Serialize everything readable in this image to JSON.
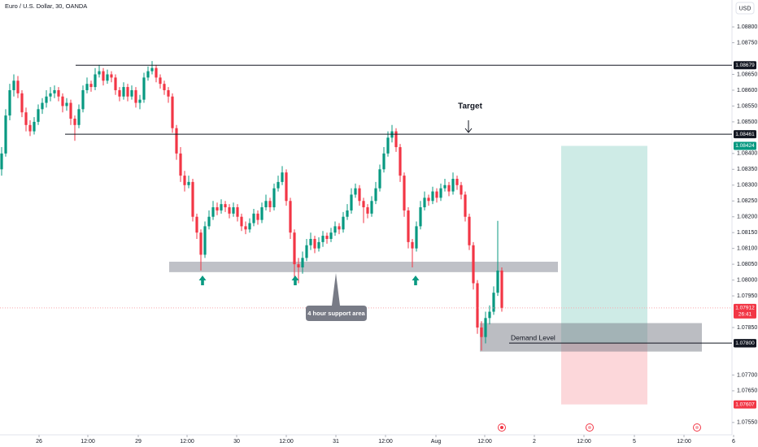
{
  "chart_data": {
    "type": "candlestick",
    "title": "Euro / U.S. Dollar, 30, OANDA",
    "currency": "USD",
    "up_color": "#089981",
    "down_color": "#f23645",
    "xlim": [
      -0.4,
      179.2
    ],
    "ylim": [
      1.07511,
      1.08885
    ],
    "yticks": [
      {
        "value": 1.088,
        "label": "1.08800"
      },
      {
        "value": 1.0875,
        "label": "1.08750"
      },
      {
        "value": 1.0865,
        "label": "1.08650"
      },
      {
        "value": 1.086,
        "label": "1.08600"
      },
      {
        "value": 1.0855,
        "label": "1.08550"
      },
      {
        "value": 1.085,
        "label": "1.08500"
      },
      {
        "value": 1.084,
        "label": "1.08400"
      },
      {
        "value": 1.0835,
        "label": "1.08350"
      },
      {
        "value": 1.083,
        "label": "1.08300"
      },
      {
        "value": 1.0825,
        "label": "1.08250"
      },
      {
        "value": 1.082,
        "label": "1.08200"
      },
      {
        "value": 1.0815,
        "label": "1.08150"
      },
      {
        "value": 1.081,
        "label": "1.08100"
      },
      {
        "value": 1.0805,
        "label": "1.08050"
      },
      {
        "value": 1.08,
        "label": "1.08000"
      },
      {
        "value": 1.0795,
        "label": "1.07950"
      },
      {
        "value": 1.0785,
        "label": "1.07850"
      },
      {
        "value": 1.077,
        "label": "1.07700"
      },
      {
        "value": 1.0765,
        "label": "1.07650"
      },
      {
        "value": 1.0755,
        "label": "1.07550"
      }
    ],
    "xticks": [
      {
        "value": 9.2,
        "label": "26"
      },
      {
        "value": 21.2,
        "label": "12:00"
      },
      {
        "value": 33.6,
        "label": "29"
      },
      {
        "value": 45.6,
        "label": "12:00"
      },
      {
        "value": 57.8,
        "label": "30"
      },
      {
        "value": 70,
        "label": "12:00"
      },
      {
        "value": 82.2,
        "label": "31"
      },
      {
        "value": 94.4,
        "label": "12:00"
      },
      {
        "value": 106.8,
        "label": "Aug"
      },
      {
        "value": 118.8,
        "label": "12:00"
      },
      {
        "value": 131,
        "label": "2"
      },
      {
        "value": 143.2,
        "label": "12:00"
      },
      {
        "value": 155.6,
        "label": "5"
      },
      {
        "value": 167.8,
        "label": "12:00"
      },
      {
        "value": 180,
        "label": "6"
      }
    ],
    "resistance": 1.08679,
    "target_level": 1.08461,
    "take_profit": 1.08424,
    "last_price": 1.07912,
    "countdown": "26:41",
    "demand_line": 1.07801,
    "entry": {
      "value": 1.078,
      "label": "1.07800"
    },
    "stop_loss": 1.07607,
    "support_zone": [
      1.08025,
      1.08058
    ],
    "demand_zone": [
      1.07774,
      1.07864
    ],
    "annotations": {
      "target": "Target",
      "support": "4 hour support area",
      "demand": "Demand Level"
    },
    "candles": [
      [
        1.0835,
        1.0842,
        1.0833,
        1.084
      ],
      [
        1.084,
        1.0854,
        1.0839,
        1.0852
      ],
      [
        1.0852,
        1.0862,
        1.08505,
        1.086
      ],
      [
        1.086,
        1.0865,
        1.0858,
        1.0863
      ],
      [
        1.0863,
        1.08645,
        1.08575,
        1.0859
      ],
      [
        1.0859,
        1.086,
        1.08515,
        1.0853
      ],
      [
        1.0853,
        1.08545,
        1.0847,
        1.0849
      ],
      [
        1.0849,
        1.08505,
        1.08455,
        1.0847
      ],
      [
        1.0847,
        1.08515,
        1.0846,
        1.085
      ],
      [
        1.085,
        1.08555,
        1.0849,
        1.0854
      ],
      [
        1.0854,
        1.08575,
        1.08525,
        1.0856
      ],
      [
        1.0856,
        1.086,
        1.08545,
        1.0858
      ],
      [
        1.0858,
        1.0861,
        1.08565,
        1.0859
      ],
      [
        1.0859,
        1.08615,
        1.08575,
        1.086
      ],
      [
        1.086,
        1.0861,
        1.08565,
        1.0858
      ],
      [
        1.0858,
        1.0859,
        1.0853,
        1.0855
      ],
      [
        1.0855,
        1.08575,
        1.08535,
        1.0856
      ],
      [
        1.0856,
        1.0857,
        1.0849,
        1.0851
      ],
      [
        1.0851,
        1.0852,
        1.0844,
        1.0849
      ],
      [
        1.0849,
        1.08555,
        1.0848,
        1.0854
      ],
      [
        1.0854,
        1.08615,
        1.0853,
        1.086
      ],
      [
        1.086,
        1.0864,
        1.0859,
        1.0862
      ],
      [
        1.0862,
        1.0863,
        1.08595,
        1.0861
      ],
      [
        1.0861,
        1.0867,
        1.086,
        1.0865
      ],
      [
        1.0865,
        1.0868,
        1.0864,
        1.0866
      ],
      [
        1.0866,
        1.0867,
        1.08615,
        1.0863
      ],
      [
        1.0863,
        1.08665,
        1.0862,
        1.0865
      ],
      [
        1.0865,
        1.0866,
        1.08625,
        1.0864
      ],
      [
        1.0864,
        1.0865,
        1.08585,
        1.086
      ],
      [
        1.086,
        1.0861,
        1.08565,
        1.0858
      ],
      [
        1.0858,
        1.08625,
        1.0857,
        1.0861
      ],
      [
        1.0861,
        1.0862,
        1.08565,
        1.0858
      ],
      [
        1.0858,
        1.08615,
        1.0857,
        1.086
      ],
      [
        1.086,
        1.0861,
        1.08545,
        1.0856
      ],
      [
        1.0856,
        1.08585,
        1.0854,
        1.0857
      ],
      [
        1.0857,
        1.08655,
        1.0856,
        1.0864
      ],
      [
        1.0864,
        1.08675,
        1.0863,
        1.0866
      ],
      [
        1.0866,
        1.08692,
        1.0865,
        1.0867
      ],
      [
        1.0867,
        1.0868,
        1.08625,
        1.0864
      ],
      [
        1.0864,
        1.0865,
        1.08605,
        1.0862
      ],
      [
        1.0862,
        1.0863,
        1.08585,
        1.086
      ],
      [
        1.086,
        1.0861,
        1.0856,
        1.0858
      ],
      [
        1.0858,
        1.0859,
        1.08465,
        1.0848
      ],
      [
        1.0848,
        1.0849,
        1.0838,
        1.084
      ],
      [
        1.084,
        1.0842,
        1.0831,
        1.0833
      ],
      [
        1.0833,
        1.08345,
        1.0828,
        1.083
      ],
      [
        1.083,
        1.0833,
        1.0829,
        1.0831
      ],
      [
        1.0831,
        1.0832,
        1.08185,
        1.082
      ],
      [
        1.082,
        1.0821,
        1.0813,
        1.0815
      ],
      [
        1.0815,
        1.0816,
        1.0803,
        1.0808
      ],
      [
        1.0808,
        1.08185,
        1.0807,
        1.0817
      ],
      [
        1.0817,
        1.0822,
        1.0816,
        1.082
      ],
      [
        1.082,
        1.0825,
        1.0819,
        1.0823
      ],
      [
        1.0823,
        1.08245,
        1.08205,
        1.0822
      ],
      [
        1.0822,
        1.08255,
        1.0821,
        1.0824
      ],
      [
        1.0824,
        1.0825,
        1.08215,
        1.0823
      ],
      [
        1.0823,
        1.0824,
        1.08195,
        1.0821
      ],
      [
        1.0821,
        1.08245,
        1.082,
        1.0823
      ],
      [
        1.0823,
        1.0824,
        1.08185,
        1.082
      ],
      [
        1.082,
        1.0821,
        1.08155,
        1.0817
      ],
      [
        1.0817,
        1.08185,
        1.08145,
        1.0816
      ],
      [
        1.0816,
        1.08195,
        1.0815,
        1.0818
      ],
      [
        1.0818,
        1.08225,
        1.0817,
        1.0821
      ],
      [
        1.0821,
        1.0822,
        1.08175,
        1.0819
      ],
      [
        1.0819,
        1.08245,
        1.0818,
        1.0823
      ],
      [
        1.0823,
        1.0827,
        1.0822,
        1.0825
      ],
      [
        1.0825,
        1.0826,
        1.08215,
        1.0823
      ],
      [
        1.0823,
        1.08305,
        1.0822,
        1.0829
      ],
      [
        1.0829,
        1.0833,
        1.0828,
        1.0831
      ],
      [
        1.0831,
        1.0836,
        1.083,
        1.0834
      ],
      [
        1.0834,
        1.0835,
        1.08235,
        1.0825
      ],
      [
        1.0825,
        1.0826,
        1.0813,
        1.0815
      ],
      [
        1.0815,
        1.0816,
        1.07985,
        1.0805
      ],
      [
        1.0805,
        1.0807,
        1.0799,
        1.0804
      ],
      [
        1.0804,
        1.0809,
        1.0802,
        1.0807
      ],
      [
        1.0807,
        1.0813,
        1.0806,
        1.0811
      ],
      [
        1.0811,
        1.0815,
        1.08095,
        1.0813
      ],
      [
        1.0813,
        1.0814,
        1.08085,
        1.081
      ],
      [
        1.081,
        1.08135,
        1.0809,
        1.0812
      ],
      [
        1.0812,
        1.08155,
        1.08105,
        1.0814
      ],
      [
        1.0814,
        1.0815,
        1.08115,
        1.0813
      ],
      [
        1.0813,
        1.08165,
        1.0812,
        1.0815
      ],
      [
        1.0815,
        1.08185,
        1.0814,
        1.0817
      ],
      [
        1.0817,
        1.0818,
        1.08145,
        1.0816
      ],
      [
        1.0816,
        1.08215,
        1.0815,
        1.082
      ],
      [
        1.082,
        1.0824,
        1.0819,
        1.0822
      ],
      [
        1.0822,
        1.0829,
        1.0821,
        1.0827
      ],
      [
        1.0827,
        1.08305,
        1.0826,
        1.0829
      ],
      [
        1.0829,
        1.083,
        1.08235,
        1.0825
      ],
      [
        1.0825,
        1.0826,
        1.0818,
        1.0823
      ],
      [
        1.0823,
        1.0824,
        1.08195,
        1.0821
      ],
      [
        1.0821,
        1.08265,
        1.082,
        1.0825
      ],
      [
        1.0825,
        1.0831,
        1.0824,
        1.0829
      ],
      [
        1.0829,
        1.08365,
        1.0828,
        1.0835
      ],
      [
        1.0835,
        1.0842,
        1.0834,
        1.084
      ],
      [
        1.084,
        1.0847,
        1.0839,
        1.0845
      ],
      [
        1.0845,
        1.0849,
        1.08435,
        1.0847
      ],
      [
        1.0847,
        1.0848,
        1.08405,
        1.0842
      ],
      [
        1.0842,
        1.0843,
        1.0831,
        1.0833
      ],
      [
        1.0833,
        1.0834,
        1.082,
        1.0822
      ],
      [
        1.0822,
        1.0823,
        1.081,
        1.0812
      ],
      [
        1.0812,
        1.0813,
        1.0804,
        1.081
      ],
      [
        1.081,
        1.08185,
        1.0809,
        1.0817
      ],
      [
        1.0817,
        1.0825,
        1.0816,
        1.0823
      ],
      [
        1.0823,
        1.0828,
        1.0822,
        1.0826
      ],
      [
        1.0826,
        1.0827,
        1.08235,
        1.0825
      ],
      [
        1.0825,
        1.08295,
        1.0824,
        1.0828
      ],
      [
        1.0828,
        1.0829,
        1.08245,
        1.0826
      ],
      [
        1.0826,
        1.08305,
        1.0825,
        1.0829
      ],
      [
        1.0829,
        1.0832,
        1.0828,
        1.083
      ],
      [
        1.083,
        1.0831,
        1.08265,
        1.0828
      ],
      [
        1.0828,
        1.0834,
        1.0827,
        1.0832
      ],
      [
        1.0832,
        1.0833,
        1.08285,
        1.083
      ],
      [
        1.083,
        1.0831,
        1.08255,
        1.0827
      ],
      [
        1.0827,
        1.0828,
        1.08185,
        1.082
      ],
      [
        1.082,
        1.0821,
        1.08095,
        1.0811
      ],
      [
        1.0811,
        1.0812,
        1.0797,
        1.0799
      ],
      [
        1.0799,
        1.08,
        1.0783,
        1.0785
      ],
      [
        1.0785,
        1.0787,
        1.07777,
        1.0782
      ],
      [
        1.0782,
        1.079,
        1.078,
        1.0788
      ],
      [
        1.0788,
        1.0792,
        1.0786,
        1.079
      ],
      [
        1.079,
        1.0798,
        1.0789,
        1.0796
      ],
      [
        1.0796,
        1.08187,
        1.0795,
        1.0803
      ],
      [
        1.0803,
        1.0804,
        1.079,
        1.07912
      ]
    ]
  }
}
